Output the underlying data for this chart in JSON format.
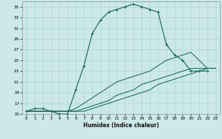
{
  "title": "",
  "xlabel": "Humidex (Indice chaleur)",
  "ylabel": "",
  "bg_color": "#cce8e8",
  "grid_color": "#aad4d4",
  "line_color": "#1a6b5a",
  "xlim": [
    -0.5,
    23.5
  ],
  "ylim": [
    15,
    36
  ],
  "yticks": [
    15,
    17,
    19,
    21,
    23,
    25,
    27,
    29,
    31,
    33,
    35
  ],
  "xticks": [
    0,
    1,
    2,
    3,
    4,
    5,
    6,
    7,
    8,
    9,
    10,
    11,
    12,
    13,
    14,
    15,
    16,
    17,
    18,
    19,
    20,
    21,
    22,
    23
  ],
  "series": [
    {
      "x": [
        0,
        1,
        2,
        3,
        4,
        5,
        6,
        7,
        8,
        9,
        10,
        11,
        12,
        13,
        14,
        15,
        16,
        17,
        18,
        19,
        20,
        21,
        22
      ],
      "y": [
        15.5,
        16.0,
        16.0,
        15.5,
        15.0,
        15.0,
        19.5,
        24.0,
        30.0,
        32.5,
        34.0,
        34.5,
        35.0,
        35.5,
        35.0,
        34.5,
        34.0,
        28.0,
        26.0,
        25.0,
        23.0,
        23.0,
        23.0
      ],
      "marker": true
    },
    {
      "x": [
        0,
        5,
        6,
        7,
        8,
        9,
        10,
        11,
        12,
        13,
        14,
        15,
        16,
        17,
        18,
        19,
        20,
        21,
        22,
        23
      ],
      "y": [
        15.5,
        15.5,
        16.0,
        17.0,
        18.0,
        19.0,
        20.0,
        21.0,
        21.5,
        22.0,
        22.5,
        23.0,
        24.0,
        25.0,
        25.5,
        26.0,
        26.5,
        25.0,
        23.5,
        23.5
      ],
      "marker": false
    },
    {
      "x": [
        0,
        5,
        6,
        7,
        8,
        9,
        10,
        11,
        12,
        13,
        14,
        15,
        16,
        17,
        18,
        19,
        20,
        21,
        22,
        23
      ],
      "y": [
        15.5,
        15.5,
        15.5,
        16.0,
        16.5,
        17.0,
        17.5,
        18.5,
        19.0,
        19.5,
        20.5,
        21.0,
        21.5,
        22.0,
        22.5,
        23.0,
        23.5,
        23.5,
        23.5,
        23.5
      ],
      "marker": false
    },
    {
      "x": [
        0,
        5,
        6,
        7,
        8,
        9,
        10,
        11,
        12,
        13,
        14,
        15,
        16,
        17,
        18,
        19,
        20,
        21,
        22,
        23
      ],
      "y": [
        15.5,
        15.5,
        15.5,
        15.5,
        16.0,
        16.5,
        17.0,
        17.5,
        18.0,
        18.5,
        19.0,
        19.5,
        20.5,
        21.0,
        21.5,
        22.0,
        22.5,
        23.0,
        23.5,
        23.5
      ],
      "marker": false
    }
  ]
}
